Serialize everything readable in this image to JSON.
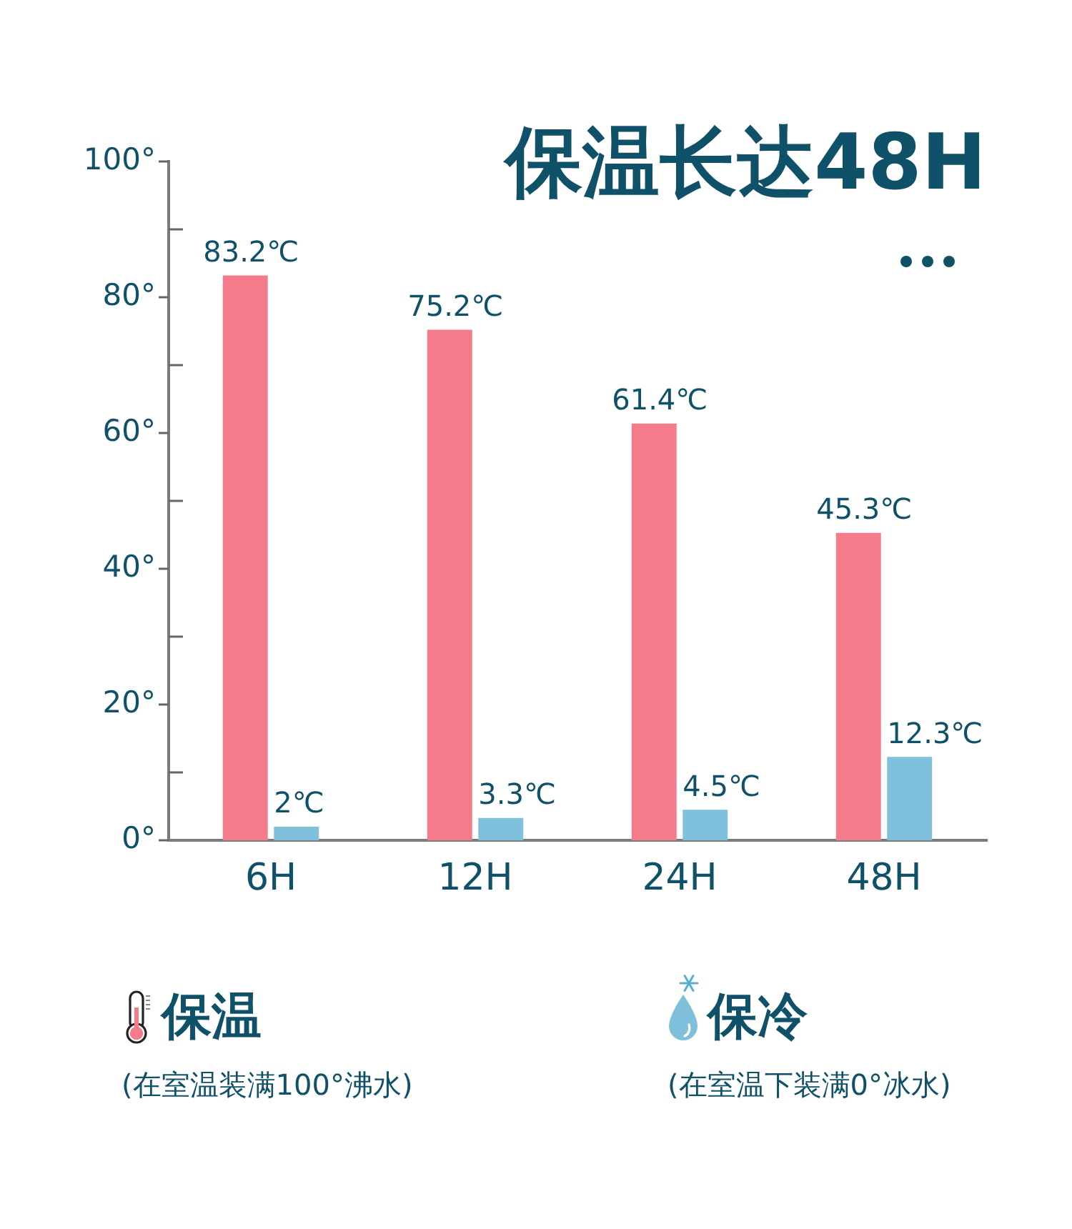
{
  "chart_data": {
    "type": "bar",
    "title": "保温长达48H",
    "categories": [
      "6H",
      "12H",
      "24H",
      "48H"
    ],
    "series": [
      {
        "name": "保温",
        "color": "#f37b8a",
        "values": [
          83.2,
          75.2,
          61.4,
          45.3
        ],
        "value_labels": [
          "83.2℃",
          "75.2℃",
          "61.4℃",
          "45.3℃"
        ]
      },
      {
        "name": "保冷",
        "color": "#7fc1dc",
        "values": [
          2,
          3.3,
          4.5,
          12.3
        ],
        "value_labels": [
          "2℃",
          "3.3℃",
          "4.5℃",
          "12.3℃"
        ]
      }
    ],
    "ylim": [
      0,
      100
    ],
    "yticks": [
      {
        "value": 0,
        "label": "0°"
      },
      {
        "value": 10,
        "label": null
      },
      {
        "value": 20,
        "label": "20°"
      },
      {
        "value": 30,
        "label": null
      },
      {
        "value": 40,
        "label": "40°"
      },
      {
        "value": 50,
        "label": null
      },
      {
        "value": 60,
        "label": "60°"
      },
      {
        "value": 70,
        "label": null
      },
      {
        "value": 80,
        "label": "80°"
      },
      {
        "value": 90,
        "label": null
      },
      {
        "value": 100,
        "label": "100°"
      }
    ],
    "grid": false,
    "legend": "bottom",
    "annotations": [
      "(在室温装满100°沸水)",
      "(在室温下装满0°冰水)"
    ]
  }
}
